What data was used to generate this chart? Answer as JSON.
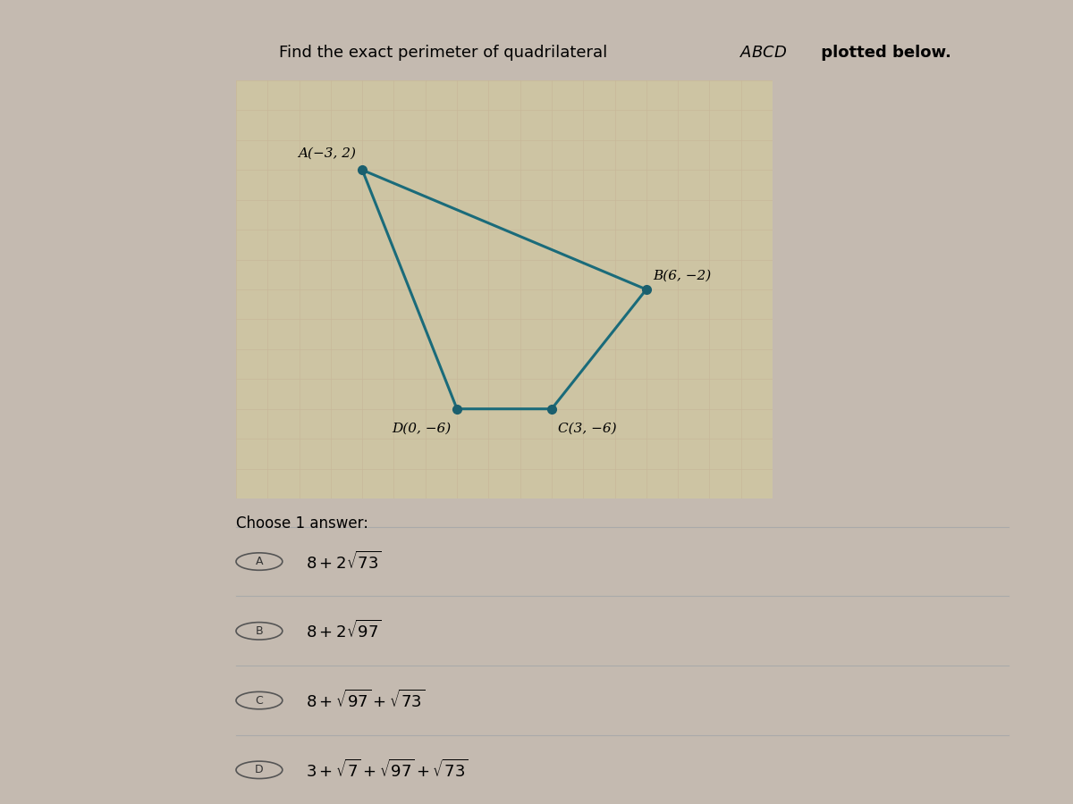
{
  "points": {
    "A": [
      -3,
      2
    ],
    "B": [
      6,
      -2
    ],
    "C": [
      3,
      -6
    ],
    "D": [
      0,
      -6
    ]
  },
  "point_labels": {
    "A": "A(−3, 2)",
    "B": "B(6, −2)",
    "C": "C(3, −6)",
    "D": "D(0, −6)"
  },
  "quadrilateral_color": "#1a6b7a",
  "point_color": "#1a5f6e",
  "grid_color": "#c8b89a",
  "background_color": "#c4bab0",
  "graph_bg": "#cdc4a3",
  "graph_xlim": [
    -7,
    10
  ],
  "graph_ylim": [
    -9,
    5
  ],
  "answers": [
    {
      "label": "A",
      "text": "$8 + 2\\sqrt{73}$"
    },
    {
      "label": "B",
      "text": "$8 + 2\\sqrt{97}$"
    },
    {
      "label": "C",
      "text": "$8 + \\sqrt{97} + \\sqrt{73}$"
    },
    {
      "label": "D",
      "text": "$3 + \\sqrt{7} + \\sqrt{97} + \\sqrt{73}$"
    }
  ],
  "choose_text": "Choose 1 answer:",
  "line_width": 2.2,
  "marker_size": 7,
  "label_fontsize": 11,
  "answer_fontsize": 13
}
